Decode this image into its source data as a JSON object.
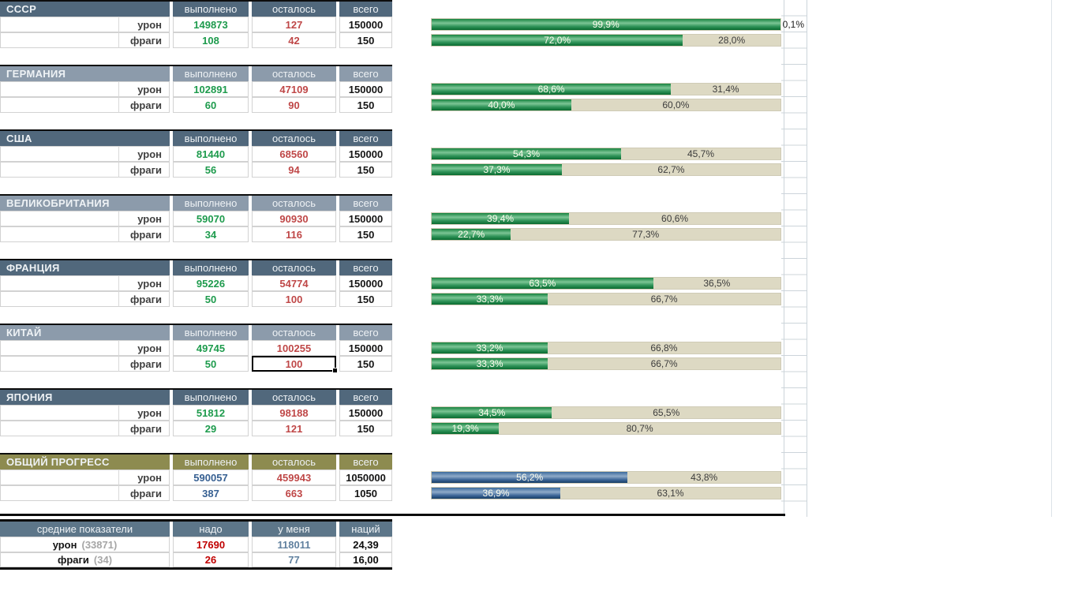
{
  "colors": {
    "header_dark": "#51687c",
    "header_light": "#8c9bab",
    "header_olive": "#8d8b50",
    "header_slate": "#5d7689",
    "bar_remainder": "#ddd9c3",
    "value_done_green": "#1e9b4d",
    "value_left_red": "#bf4747",
    "value_blue": "#376092",
    "value_mine_blue": "#61819f",
    "value_need_red": "#c00000",
    "note_gray": "#a6a6a6"
  },
  "columns": {
    "done": "выполнено",
    "left": "осталось",
    "total": "всего"
  },
  "selection": {
    "section": "КИТАЙ",
    "row": "фраги",
    "column": "осталось",
    "value": "100"
  },
  "sections": [
    {
      "name": "СССР",
      "rows": [
        {
          "label": "урон",
          "done": "149873",
          "left": "127",
          "total": "150000",
          "pct": 99.9,
          "pctLabel": "99,9%",
          "remLabel": "0,1%",
          "remOutside": true
        },
        {
          "label": "фраги",
          "done": "108",
          "left": "42",
          "total": "150",
          "pct": 72.0,
          "pctLabel": "72,0%",
          "remLabel": "28,0%"
        }
      ]
    },
    {
      "name": "ГЕРМАНИЯ",
      "rows": [
        {
          "label": "урон",
          "done": "102891",
          "left": "47109",
          "total": "150000",
          "pct": 68.6,
          "pctLabel": "68,6%",
          "remLabel": "31,4%"
        },
        {
          "label": "фраги",
          "done": "60",
          "left": "90",
          "total": "150",
          "pct": 40.0,
          "pctLabel": "40,0%",
          "remLabel": "60,0%"
        }
      ]
    },
    {
      "name": "США",
      "rows": [
        {
          "label": "урон",
          "done": "81440",
          "left": "68560",
          "total": "150000",
          "pct": 54.3,
          "pctLabel": "54,3%",
          "remLabel": "45,7%"
        },
        {
          "label": "фраги",
          "done": "56",
          "left": "94",
          "total": "150",
          "pct": 37.3,
          "pctLabel": "37,3%",
          "remLabel": "62,7%"
        }
      ]
    },
    {
      "name": "ВЕЛИКОБРИТАНИЯ",
      "rows": [
        {
          "label": "урон",
          "done": "59070",
          "left": "90930",
          "total": "150000",
          "pct": 39.4,
          "pctLabel": "39,4%",
          "remLabel": "60,6%"
        },
        {
          "label": "фраги",
          "done": "34",
          "left": "116",
          "total": "150",
          "pct": 22.7,
          "pctLabel": "22,7%",
          "remLabel": "77,3%"
        }
      ]
    },
    {
      "name": "ФРАНЦИЯ",
      "rows": [
        {
          "label": "урон",
          "done": "95226",
          "left": "54774",
          "total": "150000",
          "pct": 63.5,
          "pctLabel": "63,5%",
          "remLabel": "36,5%"
        },
        {
          "label": "фраги",
          "done": "50",
          "left": "100",
          "total": "150",
          "pct": 33.3,
          "pctLabel": "33,3%",
          "remLabel": "66,7%"
        }
      ]
    },
    {
      "name": "КИТАЙ",
      "rows": [
        {
          "label": "урон",
          "done": "49745",
          "left": "100255",
          "total": "150000",
          "pct": 33.2,
          "pctLabel": "33,2%",
          "remLabel": "66,8%"
        },
        {
          "label": "фраги",
          "done": "50",
          "left": "100",
          "total": "150",
          "pct": 33.3,
          "pctLabel": "33,3%",
          "remLabel": "66,7%",
          "selected": true
        }
      ]
    },
    {
      "name": "ЯПОНИЯ",
      "rows": [
        {
          "label": "урон",
          "done": "51812",
          "left": "98188",
          "total": "150000",
          "pct": 34.5,
          "pctLabel": "34,5%",
          "remLabel": "65,5%"
        },
        {
          "label": "фраги",
          "done": "29",
          "left": "121",
          "total": "150",
          "pct": 19.3,
          "pctLabel": "19,3%",
          "remLabel": "80,7%"
        }
      ]
    },
    {
      "name": "ОБЩИЙ ПРОГРЕСС",
      "rows": [
        {
          "label": "урон",
          "done": "590057",
          "left": "459943",
          "total": "1050000",
          "pct": 56.2,
          "pctLabel": "56,2%",
          "remLabel": "43,8%"
        },
        {
          "label": "фраги",
          "done": "387",
          "left": "663",
          "total": "1050",
          "pct": 36.9,
          "pctLabel": "36,9%",
          "remLabel": "63,1%"
        }
      ]
    }
  ],
  "averages": {
    "title": "средние показатели",
    "col_need": "надо",
    "col_mine": "у меня",
    "col_nations": "наций",
    "rows": [
      {
        "label": "урон",
        "note": "(33871)",
        "need": "17690",
        "mine": "118011",
        "nations": "24,39"
      },
      {
        "label": "фраги",
        "note": "(34)",
        "need": "26",
        "mine": "77",
        "nations": "16,00"
      }
    ]
  }
}
